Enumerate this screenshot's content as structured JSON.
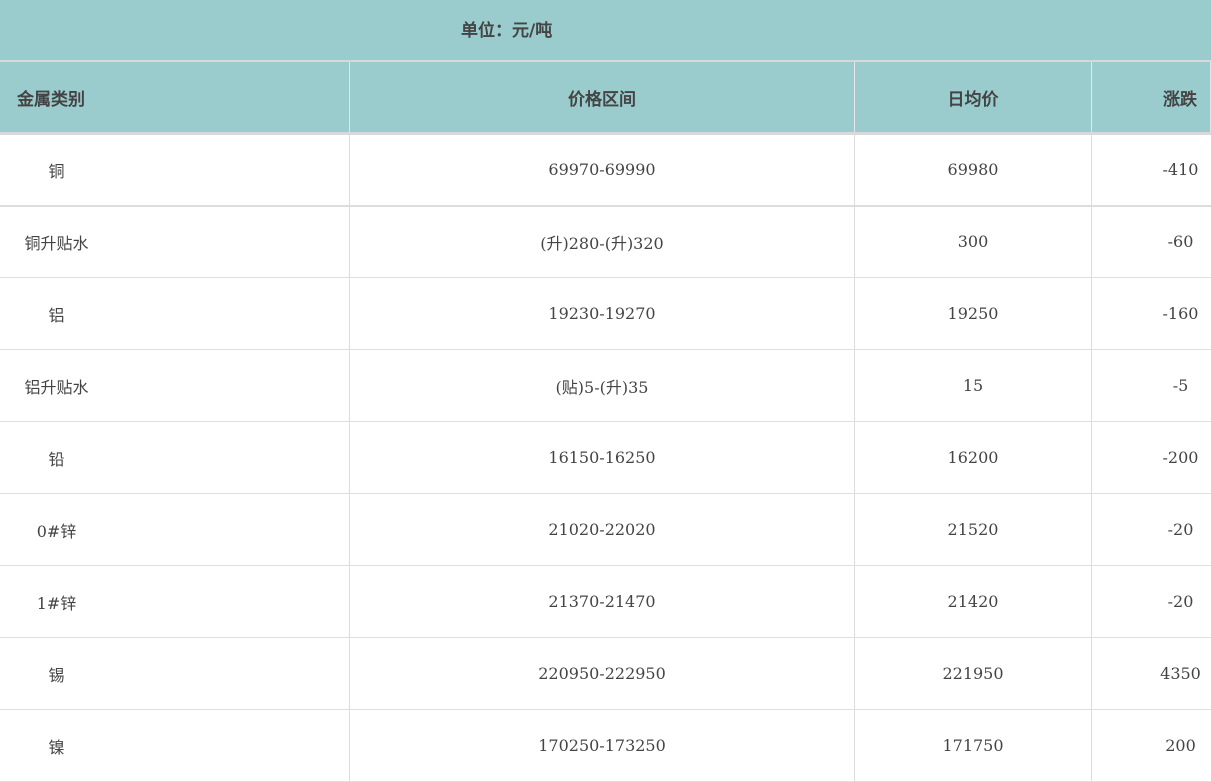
{
  "unit_label": "单位：元/吨",
  "columns": [
    "金属类别",
    "价格区间",
    "日均价",
    "涨跌"
  ],
  "rows": [
    [
      "铜",
      "69970-69990",
      "69980",
      "-410"
    ],
    [
      "铜升贴水",
      "(升)280-(升)320",
      "300",
      "-60"
    ],
    [
      "铝",
      "19230-19270",
      "19250",
      "-160"
    ],
    [
      "铝升贴水",
      "(贴)5-(升)35",
      "15",
      "-5"
    ],
    [
      "铅",
      "16150-16250",
      "16200",
      "-200"
    ],
    [
      "0#锌",
      "21020-22020",
      "21520",
      "-20"
    ],
    [
      "1#锌",
      "21370-21470",
      "21420",
      "-20"
    ],
    [
      "锡",
      "220950-222950",
      "221950",
      "4350"
    ],
    [
      "镍",
      "170250-173250",
      "171750",
      "200"
    ]
  ],
  "colors": {
    "header_bg": "#9acccd",
    "text": "#444444",
    "border": "#dcdcdc"
  }
}
